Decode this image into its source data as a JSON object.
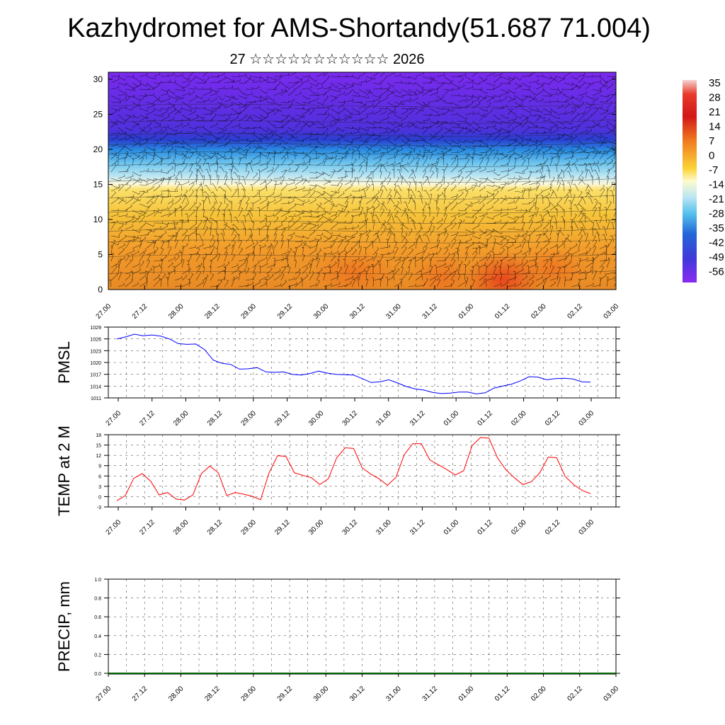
{
  "title": "Kazhydromet for AMS-Shortandy(51.687 71.004)",
  "subtitle": "27 ☆☆☆☆☆☆☆☆☆☆☆ 2026",
  "chart_data": [
    {
      "type": "heatmap",
      "name": "temperature-wind-section",
      "y_ticks": [
        "0",
        "5",
        "10",
        "15",
        "20",
        "25",
        "30"
      ],
      "ylim": [
        0,
        31
      ],
      "x_ticks": [
        "27.00",
        "27.12",
        "28.00",
        "28.12",
        "29.00",
        "29.12",
        "30.00",
        "30.12",
        "31.00",
        "31.12",
        "01.00",
        "01.12",
        "02.00",
        "02.12",
        "03.00"
      ],
      "colorbar": {
        "labels": [
          "35",
          "28",
          "21",
          "14",
          "7",
          "0",
          "-7",
          "-14",
          "-21",
          "-28",
          "-35",
          "-42",
          "-49",
          "-56"
        ],
        "colors": [
          "#f4d2d2",
          "#e83a2a",
          "#d21818",
          "#e8401a",
          "#f07a1e",
          "#f5a323",
          "#fbd53a",
          "#fdfacf",
          "#b9e6f2",
          "#55c0ec",
          "#2196e6",
          "#2366d8",
          "#3f3ad8",
          "#6a2ae8",
          "#8a2af2"
        ]
      }
    },
    {
      "type": "line",
      "name": "PMSL",
      "ylabel": "PMSL",
      "ylim": [
        1011,
        1029
      ],
      "y_ticks": [
        "1011",
        "1014",
        "1017",
        "1020",
        "1023",
        "1026",
        "1029"
      ],
      "x_ticks": [
        "27.00",
        "27.12",
        "28.00",
        "28.12",
        "29.00",
        "29.12",
        "30.00",
        "30.12",
        "31.00",
        "31.12",
        "01.00",
        "01.12",
        "02.00",
        "02.12",
        "03.00"
      ],
      "color": "#0000ff",
      "values": [
        1026,
        1026.5,
        1027.2,
        1026.8,
        1027,
        1026.7,
        1026,
        1024.8,
        1024.6,
        1024.7,
        1023.3,
        1020.6,
        1019.8,
        1019.5,
        1018.3,
        1018.4,
        1018.7,
        1017.6,
        1017.5,
        1017.6,
        1017,
        1016.8,
        1017.2,
        1017.8,
        1017.3,
        1017,
        1016.9,
        1016.8,
        1015.9,
        1014.9,
        1015.1,
        1015.6,
        1014.8,
        1013.9,
        1013.3,
        1013,
        1012.4,
        1012.1,
        1012.2,
        1012.5,
        1012.5,
        1012,
        1012.3,
        1013.5,
        1014,
        1014.5,
        1015.3,
        1016.4,
        1016.3,
        1015.6,
        1015.9,
        1016,
        1015.8,
        1015.1,
        1015
      ]
    },
    {
      "type": "line",
      "name": "TEMP at 2 M",
      "ylabel": "TEMP at 2 M",
      "ylim": [
        -3,
        18
      ],
      "y_ticks": [
        "-3",
        "0",
        "3",
        "6",
        "9",
        "12",
        "15",
        "18"
      ],
      "x_ticks": [
        "27.00",
        "27.12",
        "28.00",
        "28.12",
        "29.00",
        "29.12",
        "30.00",
        "30.12",
        "31.00",
        "31.12",
        "01.00",
        "01.12",
        "02.00",
        "02.12",
        "03.00"
      ],
      "color": "#ff0000",
      "values": [
        -1.2,
        0.3,
        5.3,
        6.7,
        4.5,
        0.5,
        1.2,
        -0.7,
        -1,
        0.5,
        6.7,
        8.9,
        6.9,
        0.3,
        1.2,
        0.7,
        0.1,
        -0.9,
        6.9,
        11.9,
        11.7,
        6.9,
        6.2,
        5.5,
        3.5,
        5.2,
        11.3,
        14.2,
        14,
        8.4,
        6.6,
        5.2,
        3.3,
        5.6,
        12.3,
        15.4,
        15.4,
        10.7,
        9.3,
        7.9,
        6.3,
        7.5,
        14.8,
        17.2,
        17,
        11.3,
        7.8,
        5.5,
        3.5,
        4.3,
        6.9,
        11.5,
        11.3,
        5.9,
        3.5,
        1.8,
        0.9
      ]
    },
    {
      "type": "bar",
      "name": "PRECIP, mm",
      "ylabel": "PRECIP, mm",
      "ylim": [
        0,
        1
      ],
      "y_ticks": [
        "0.0",
        "0.2",
        "0.4",
        "0.6",
        "0.8",
        "1.0"
      ],
      "x_ticks": [
        "27.00",
        "27.12",
        "28.00",
        "28.12",
        "29.00",
        "29.12",
        "30.00",
        "30.12",
        "31.00",
        "31.12",
        "01.00",
        "01.12",
        "02.00",
        "02.12",
        "03.00"
      ],
      "values": []
    }
  ]
}
